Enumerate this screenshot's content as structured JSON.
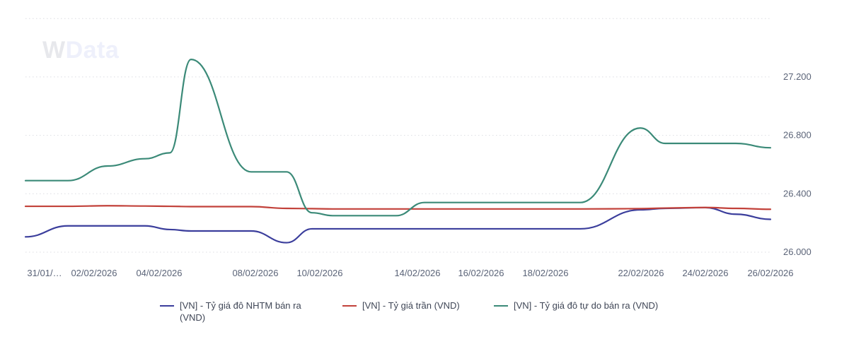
{
  "watermark": {
    "brand_w": "W",
    "brand_rest": "Data"
  },
  "colors": {
    "nhtm": "#3b3e9c",
    "tran": "#c2413a",
    "tu_do": "#3b8a78",
    "grid": "#dcdde2",
    "axis_text": "#5b6478"
  },
  "chart_data": {
    "type": "line",
    "title": "",
    "xlabel": "",
    "ylabel": "",
    "ylim": [
      25990,
      27650
    ],
    "y_axis_position": "right",
    "y_ticks": [
      {
        "value": 26000,
        "label": "26.000"
      },
      {
        "value": 26400,
        "label": "26.400"
      },
      {
        "value": 26800,
        "label": "26.800"
      },
      {
        "value": 27200,
        "label": "27.200"
      },
      {
        "value": 27600,
        "label": ""
      }
    ],
    "x_tick_labels": [
      "31/01/…",
      "02/02/2026",
      "04/02/2026",
      "08/02/2026",
      "10/02/2026",
      "14/02/2026",
      "16/02/2026",
      "18/02/2026",
      "22/02/2026",
      "24/02/2026",
      "26/02/2026"
    ],
    "grid": true,
    "legend_position": "bottom",
    "x": [
      "31/01/2026",
      "02/02/2026",
      "03/02/2026",
      "04/02/2026",
      "05/02/2026",
      "06/02/2026",
      "08/02/2026",
      "09/02/2026",
      "10/02/2026",
      "11/02/2026",
      "12/02/2026",
      "13/02/2026",
      "14/02/2026",
      "15/02/2026",
      "16/02/2026",
      "17/02/2026",
      "18/02/2026",
      "19/02/2026",
      "20/02/2026",
      "22/02/2026",
      "23/02/2026",
      "24/02/2026",
      "25/02/2026",
      "26/02/2026"
    ],
    "series": [
      {
        "name": "[VN] - Tỷ giá đô NHTM bán ra (VND)",
        "color": "#3b3e9c",
        "values": [
          26105,
          26180,
          26180,
          26180,
          26155,
          26145,
          26145,
          26065,
          26160,
          26160,
          26160,
          26160,
          26160,
          26160,
          26160,
          26160,
          26160,
          26160,
          26160,
          26290,
          26300,
          26305,
          26260,
          26225
        ]
      },
      {
        "name": "[VN] - Tỷ giá trần (VND)",
        "color": "#c2413a",
        "values": [
          26314,
          26314,
          26318,
          26316,
          26314,
          26312,
          26312,
          26300,
          26298,
          26296,
          26296,
          26296,
          26296,
          26296,
          26296,
          26296,
          26296,
          26296,
          26296,
          26298,
          26302,
          26306,
          26300,
          26294
        ]
      },
      {
        "name": "[VN] - Tỷ giá đô tự do bán ra (VND)",
        "color": "#3b8a78",
        "values": [
          26490,
          26490,
          26590,
          26640,
          26680,
          27320,
          26550,
          26550,
          26270,
          26250,
          26250,
          26250,
          26340,
          26340,
          26340,
          26340,
          26340,
          26340,
          26340,
          26850,
          26745,
          26745,
          26745,
          26715
        ]
      }
    ]
  },
  "legend": {
    "items": [
      {
        "label_line1": "[VN] - Tỷ giá đô NHTM bán ra",
        "label_line2": "(VND)"
      },
      {
        "label_line1": "[VN] - Tỷ giá trần (VND)",
        "label_line2": ""
      },
      {
        "label_line1": "[VN] - Tỷ giá đô tự do bán ra (VND)",
        "label_line2": ""
      }
    ]
  }
}
